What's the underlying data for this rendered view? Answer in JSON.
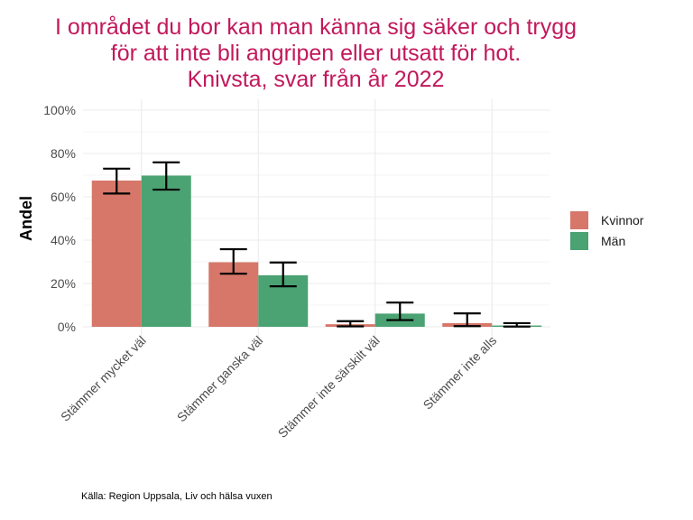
{
  "chart_data": {
    "type": "bar",
    "title_lines": [
      "I området du bor kan man känna sig säker och trygg",
      "för att inte bli angripen eller utsatt för hot.",
      "Knivsta, svar från år 2022"
    ],
    "xlabel": "",
    "ylabel": "Andel",
    "categories": [
      "Stämmer mycket väl",
      "Stämmer ganska väl",
      "Stämmer inte särskilt väl",
      "Stämmer inte alls"
    ],
    "series": [
      {
        "name": "Kvinnor",
        "color": "#d6776a",
        "values": [
          67.5,
          29.8,
          1.2,
          1.7
        ],
        "ci_low": [
          61.5,
          24.5,
          0.2,
          0.3
        ],
        "ci_high": [
          73.0,
          35.8,
          2.6,
          6.2
        ]
      },
      {
        "name": "Män",
        "color": "#4ba272",
        "values": [
          69.8,
          23.8,
          6.1,
          0.6
        ],
        "ci_low": [
          63.3,
          18.7,
          3.1,
          0.1
        ],
        "ci_high": [
          75.9,
          29.7,
          11.2,
          1.7
        ]
      }
    ],
    "ylim": [
      0,
      100
    ],
    "yticks": [
      "0%",
      "20%",
      "40%",
      "60%",
      "80%",
      "100%"
    ],
    "legend_position": "right",
    "grid": true,
    "caption": "Källa: Region Uppsala, Liv och hälsa vuxen"
  }
}
